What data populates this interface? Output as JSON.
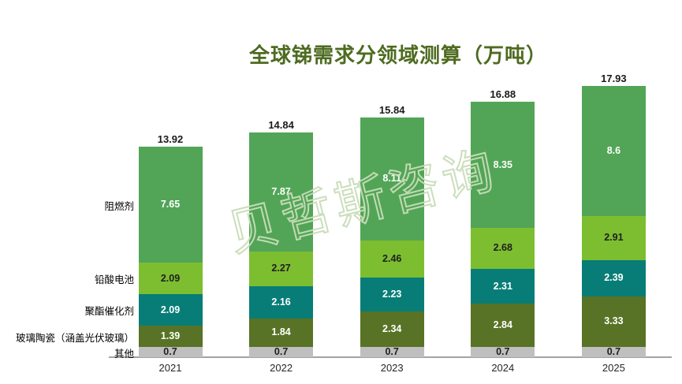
{
  "title": "全球锑需求分领域测算（万吨）",
  "watermark": "贝哲斯咨询",
  "chart_data": {
    "type": "bar",
    "variant": "stacked-column",
    "unit": "万吨",
    "title": "全球锑需求分领域测算（万吨）",
    "grid": false,
    "legend_position": "left-inline-series-names",
    "categories": [
      "2021",
      "2022",
      "2023",
      "2024",
      "2025"
    ],
    "series": [
      {
        "name": "其他",
        "color": "#BFBFBF",
        "label_color": "#1f1f1f",
        "values": [
          0.7,
          0.7,
          0.7,
          0.7,
          0.7
        ]
      },
      {
        "name": "玻璃陶瓷（涵盖光伏玻璃）",
        "color": "#587325",
        "label_color": "#ffffff",
        "values": [
          1.39,
          1.84,
          2.34,
          2.84,
          3.33
        ]
      },
      {
        "name": "聚酯催化剂",
        "color": "#087D77",
        "label_color": "#ffffff",
        "values": [
          2.09,
          2.16,
          2.23,
          2.31,
          2.39
        ]
      },
      {
        "name": "铅酸电池",
        "color": "#7DBE30",
        "label_color": "#1f1f1f",
        "values": [
          2.09,
          2.27,
          2.46,
          2.68,
          2.91
        ]
      },
      {
        "name": "阻燃剂",
        "color": "#52A557",
        "label_color": "#ffffff",
        "values": [
          7.65,
          7.87,
          8.11,
          8.35,
          8.6
        ]
      }
    ],
    "totals": [
      13.92,
      14.84,
      15.84,
      16.88,
      17.93
    ],
    "axis": {
      "baseline_color": "#A3A3A3"
    }
  },
  "colors": {
    "title": "#4E6B20",
    "total_label": "#1a1a1a",
    "year_label": "#262626",
    "watermark_stroke": "#c9ddb8"
  }
}
